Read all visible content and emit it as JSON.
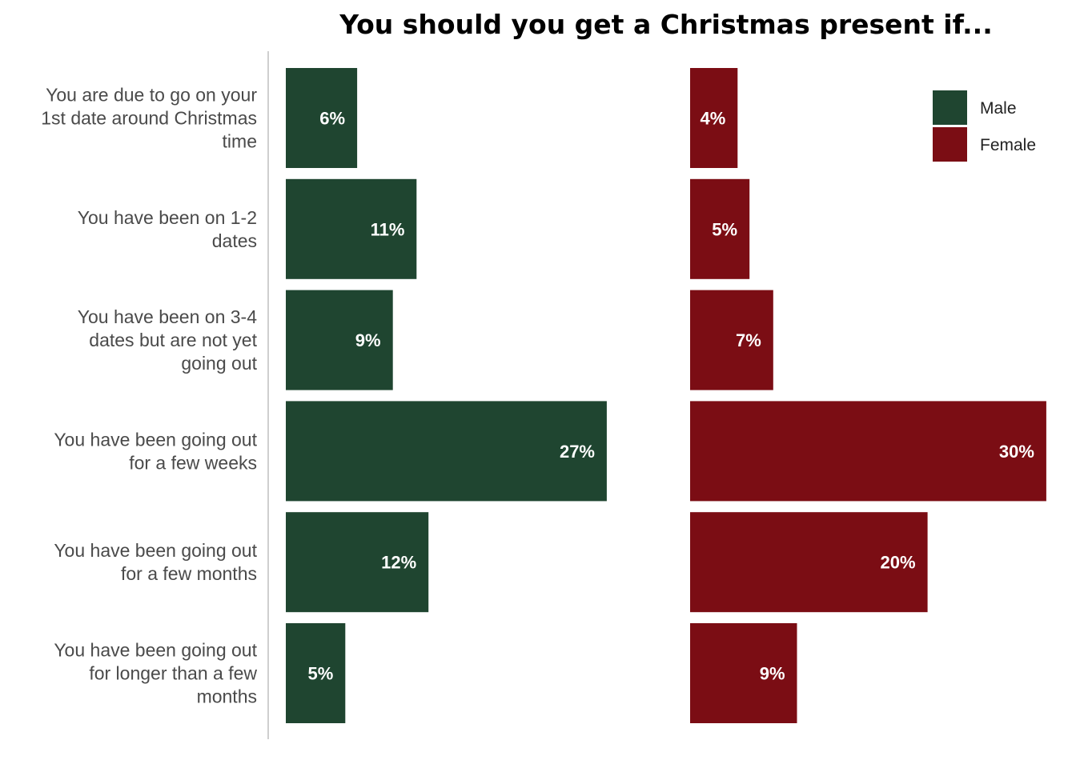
{
  "chart_data": {
    "type": "bar",
    "orientation": "horizontal",
    "title": "You should you get a Christmas present if...",
    "categories": [
      [
        "You are due to go on your",
        "1st date around Christmas",
        "time"
      ],
      [
        "You have been on 1-2",
        "dates"
      ],
      [
        "You have been on 3-4",
        "dates but are not yet",
        "going out"
      ],
      [
        "You have been going out",
        "for a few weeks"
      ],
      [
        "You have been going out",
        "for a few months"
      ],
      [
        "You have been going out",
        "for longer than a few",
        "months"
      ]
    ],
    "series": [
      {
        "name": "Male",
        "color": "#1f4530",
        "values": [
          6,
          11,
          9,
          27,
          12,
          5
        ],
        "labels": [
          "6%",
          "11%",
          "9%",
          "27%",
          "12%",
          "5%"
        ]
      },
      {
        "name": "Female",
        "color": "#7b0d14",
        "values": [
          4,
          5,
          7,
          30,
          20,
          9
        ],
        "labels": [
          "4%",
          "5%",
          "7%",
          "30%",
          "20%",
          "9%"
        ]
      }
    ],
    "unit": "%",
    "grid": false,
    "legend_position": "top-right",
    "layout": "side-by-side panels, one per series"
  }
}
